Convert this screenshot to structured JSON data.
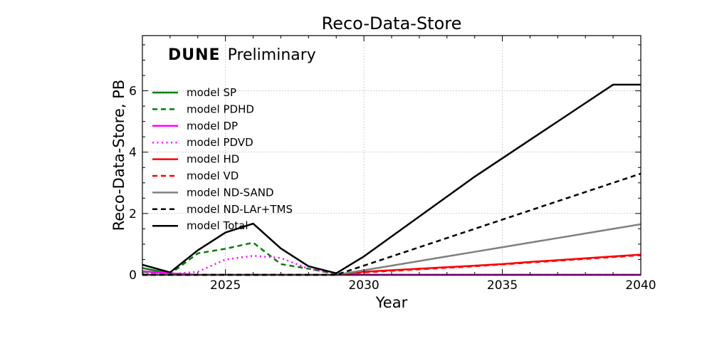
{
  "chart_data": {
    "type": "line",
    "title": "Reco-Data-Store",
    "xlabel": "Year",
    "ylabel": "Reco-Data-Store, PB",
    "xlim": [
      2022,
      2040
    ],
    "ylim": [
      0,
      7.8
    ],
    "xticks": [
      2025,
      2030,
      2035,
      2040
    ],
    "yticks": [
      0,
      2,
      4,
      6
    ],
    "grid": true,
    "legend_placement": "upper-left",
    "brand": {
      "bold": "DUNE",
      "normal": "Preliminary"
    },
    "series": [
      {
        "name": "model SP",
        "color": "#008000",
        "style": "solid",
        "x": [
          2022,
          2023,
          2024,
          2025,
          2026,
          2027,
          2028,
          2029,
          2030,
          2031,
          2032,
          2033,
          2034,
          2035,
          2036,
          2037,
          2038,
          2039,
          2040
        ],
        "y": [
          0.22,
          0.05,
          0,
          0,
          0,
          0,
          0,
          0,
          0,
          0,
          0,
          0,
          0,
          0,
          0,
          0,
          0,
          0,
          0
        ]
      },
      {
        "name": "model PDHD",
        "color": "#008000",
        "style": "dashed",
        "x": [
          2022,
          2023,
          2024,
          2025,
          2026,
          2027,
          2028,
          2029,
          2030,
          2031,
          2032,
          2033,
          2034,
          2035,
          2036,
          2037,
          2038,
          2039,
          2040
        ],
        "y": [
          0.1,
          0.03,
          0.7,
          0.85,
          1.05,
          0.35,
          0.2,
          0.03,
          0,
          0,
          0,
          0,
          0,
          0,
          0,
          0,
          0,
          0,
          0
        ]
      },
      {
        "name": "model DP",
        "color": "#ff00ff",
        "style": "solid",
        "x": [
          2022,
          2023,
          2024,
          2025,
          2026,
          2027,
          2028,
          2029,
          2030,
          2031,
          2032,
          2033,
          2034,
          2035,
          2036,
          2037,
          2038,
          2039,
          2040
        ],
        "y": [
          0.12,
          0.05,
          0,
          0,
          0,
          0,
          0,
          0,
          0,
          0,
          0,
          0,
          0,
          0,
          0,
          0,
          0,
          0,
          0
        ]
      },
      {
        "name": "model PDVD",
        "color": "#ff00ff",
        "style": "dotted",
        "x": [
          2022,
          2023,
          2024,
          2025,
          2026,
          2027,
          2028,
          2029,
          2030,
          2031,
          2032,
          2033,
          2034,
          2035,
          2036,
          2037,
          2038,
          2039,
          2040
        ],
        "y": [
          0.05,
          0.02,
          0.1,
          0.5,
          0.62,
          0.55,
          0.2,
          0.02,
          0,
          0,
          0,
          0,
          0,
          0,
          0,
          0,
          0,
          0,
          0
        ]
      },
      {
        "name": "model HD",
        "color": "#ff0000",
        "style": "solid",
        "x": [
          2022,
          2023,
          2024,
          2025,
          2026,
          2027,
          2028,
          2029,
          2030,
          2031,
          2032,
          2033,
          2034,
          2035,
          2036,
          2037,
          2038,
          2039,
          2040
        ],
        "y": [
          0,
          0,
          0,
          0,
          0,
          0,
          0,
          0,
          0.1,
          0.15,
          0.2,
          0.25,
          0.3,
          0.35,
          0.42,
          0.48,
          0.54,
          0.6,
          0.66
        ]
      },
      {
        "name": "model VD",
        "color": "#ff0000",
        "style": "dashed",
        "x": [
          2022,
          2023,
          2024,
          2025,
          2026,
          2027,
          2028,
          2029,
          2030,
          2031,
          2032,
          2033,
          2034,
          2035,
          2036,
          2037,
          2038,
          2039,
          2040
        ],
        "y": [
          0,
          0,
          0,
          0,
          0,
          0,
          0,
          0,
          0.08,
          0.13,
          0.18,
          0.23,
          0.28,
          0.34,
          0.4,
          0.46,
          0.52,
          0.58,
          0.64
        ]
      },
      {
        "name": "model ND-SAND",
        "color": "#808080",
        "style": "solid",
        "x": [
          2022,
          2023,
          2024,
          2025,
          2026,
          2027,
          2028,
          2029,
          2030,
          2031,
          2032,
          2033,
          2034,
          2035,
          2036,
          2037,
          2038,
          2039,
          2040
        ],
        "y": [
          0,
          0,
          0,
          0,
          0,
          0,
          0,
          0,
          0.15,
          0.3,
          0.45,
          0.6,
          0.75,
          0.9,
          1.05,
          1.2,
          1.35,
          1.5,
          1.65
        ]
      },
      {
        "name": "model ND-LAr+TMS",
        "color": "#000000",
        "style": "dashed",
        "x": [
          2022,
          2023,
          2024,
          2025,
          2026,
          2027,
          2028,
          2029,
          2030,
          2031,
          2032,
          2033,
          2034,
          2035,
          2036,
          2037,
          2038,
          2039,
          2040
        ],
        "y": [
          0,
          0,
          0,
          0,
          0,
          0,
          0,
          0,
          0.3,
          0.6,
          0.9,
          1.2,
          1.5,
          1.8,
          2.1,
          2.4,
          2.7,
          3.0,
          3.3
        ]
      },
      {
        "name": "model Total",
        "color": "#000000",
        "style": "solid",
        "x": [
          2022,
          2023,
          2024,
          2025,
          2026,
          2027,
          2028,
          2029,
          2030,
          2031,
          2032,
          2033,
          2034,
          2035,
          2036,
          2037,
          2038,
          2039,
          2040
        ],
        "y": [
          0.33,
          0.08,
          0.8,
          1.38,
          1.67,
          0.86,
          0.28,
          0.05,
          0.6,
          1.25,
          1.9,
          2.55,
          3.2,
          3.8,
          4.4,
          5.0,
          5.6,
          6.2,
          6.2
        ]
      }
    ]
  }
}
